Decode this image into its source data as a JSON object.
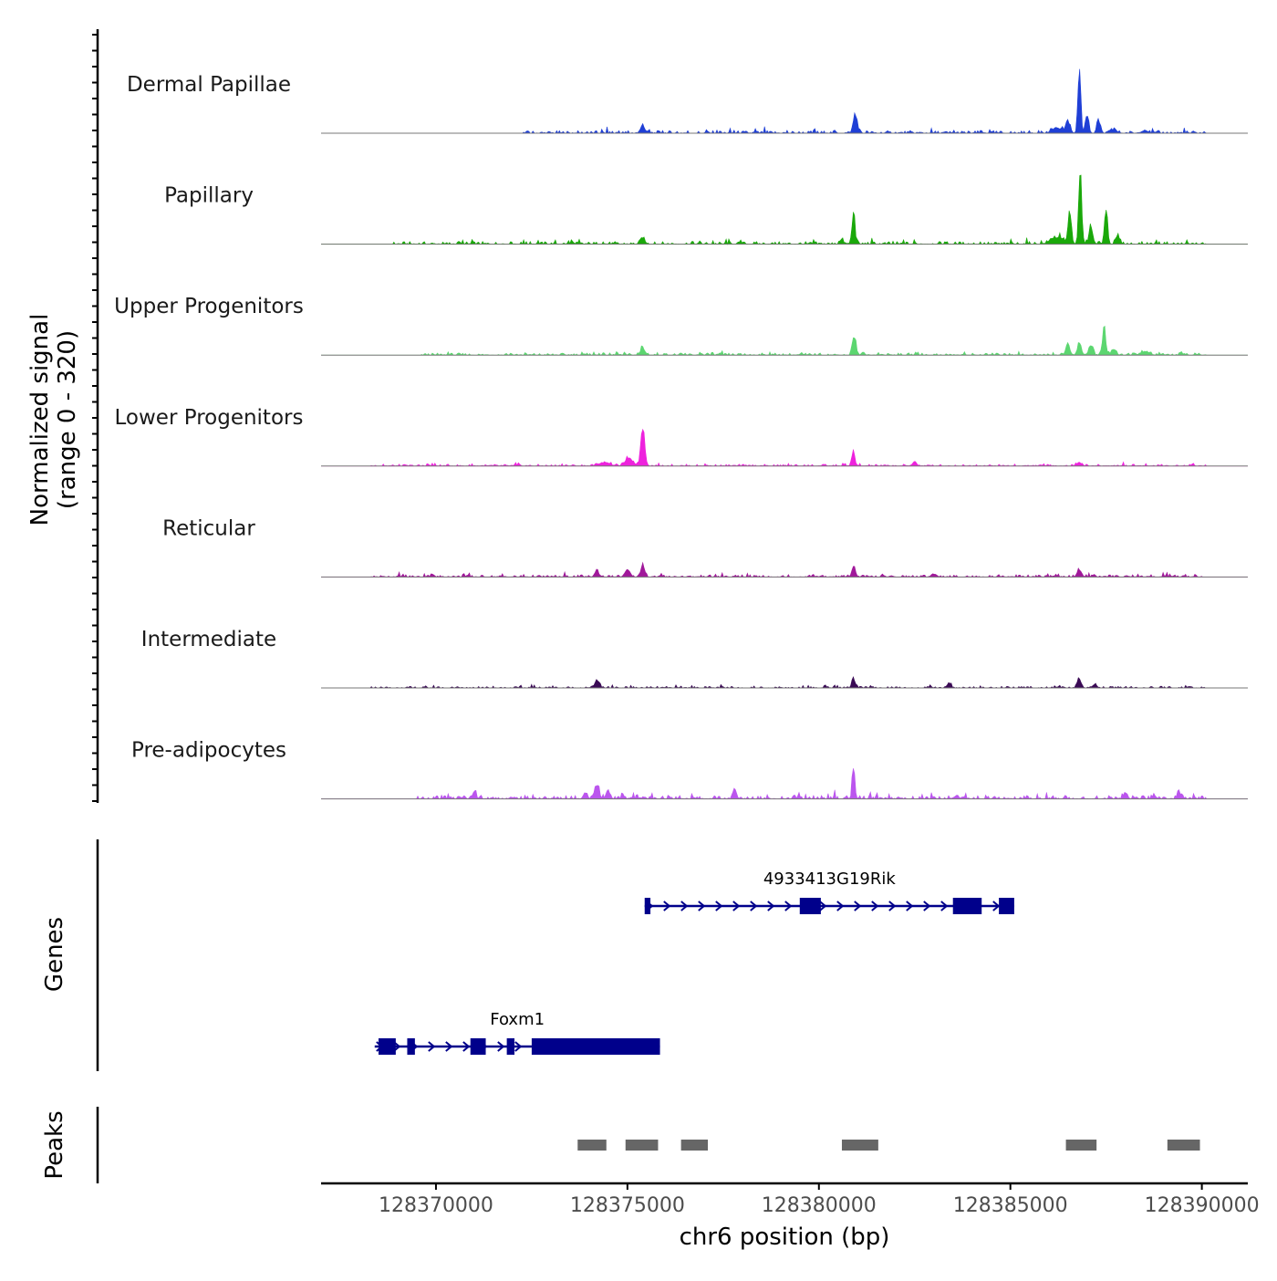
{
  "chart_data": {
    "type": "area",
    "chromosome": "chr6",
    "xlabel": "chr6 position (bp)",
    "xlim": [
      128367000,
      128391200
    ],
    "x_ticks": [
      128370000,
      128375000,
      128380000,
      128385000,
      128390000
    ],
    "x_tick_labels": [
      "128370000",
      "128375000",
      "128380000",
      "128385000",
      "128390000"
    ],
    "coverage_ylabel_line1": "Normalized signal",
    "coverage_ylabel_line2": "(range 0 - 320)",
    "ylim": [
      0,
      320
    ],
    "tracks": [
      {
        "name": "Dermal Papillae",
        "color": "#1f3fd6",
        "region": [
          128372200,
          128390100
        ],
        "peaks": [
          [
            128375400,
            35,
            70
          ],
          [
            128380950,
            83,
            70
          ],
          [
            128386200,
            22,
            150
          ],
          [
            128386500,
            55,
            80
          ],
          [
            128386800,
            300,
            50
          ],
          [
            128387000,
            80,
            60
          ],
          [
            128387300,
            55,
            60
          ],
          [
            128387700,
            15,
            100
          ],
          [
            128388500,
            12,
            100
          ]
        ],
        "noise": 10
      },
      {
        "name": "Papillary",
        "color": "#1aa80a",
        "region": [
          128368900,
          128390100
        ],
        "peaks": [
          [
            128375400,
            28,
            70
          ],
          [
            128380900,
            130,
            55
          ],
          [
            128380600,
            18,
            60
          ],
          [
            128386550,
            135,
            60
          ],
          [
            128386820,
            340,
            50
          ],
          [
            128387100,
            85,
            60
          ],
          [
            128387500,
            150,
            55
          ],
          [
            128387800,
            35,
            70
          ],
          [
            128386200,
            30,
            200
          ]
        ],
        "noise": 10
      },
      {
        "name": "Upper Progenitors",
        "color": "#5cd670",
        "region": [
          128369600,
          128390100
        ],
        "peaks": [
          [
            128375400,
            33,
            70
          ],
          [
            128380920,
            75,
            60
          ],
          [
            128386500,
            45,
            70
          ],
          [
            128386800,
            50,
            70
          ],
          [
            128387100,
            45,
            70
          ],
          [
            128387450,
            120,
            55
          ],
          [
            128387700,
            25,
            80
          ],
          [
            128388500,
            12,
            150
          ]
        ],
        "noise": 8
      },
      {
        "name": "Lower Progenitors",
        "color": "#ee22dd",
        "region": [
          128368300,
          128390100
        ],
        "peaks": [
          [
            128375400,
            165,
            70
          ],
          [
            128375050,
            30,
            150
          ],
          [
            128374400,
            15,
            200
          ],
          [
            128380900,
            58,
            50
          ],
          [
            128382500,
            18,
            70
          ],
          [
            128386800,
            15,
            100
          ]
        ],
        "noise": 7
      },
      {
        "name": "Reticular",
        "color": "#a0189a",
        "region": [
          128368300,
          128390100
        ],
        "peaks": [
          [
            128375400,
            48,
            70
          ],
          [
            128375000,
            28,
            80
          ],
          [
            128374200,
            28,
            70
          ],
          [
            128380900,
            48,
            60
          ],
          [
            128386800,
            28,
            80
          ],
          [
            128383000,
            12,
            100
          ]
        ],
        "noise": 8
      },
      {
        "name": "Intermediate",
        "color": "#3a0a55",
        "region": [
          128368300,
          128390100
        ],
        "peaks": [
          [
            128374200,
            35,
            70
          ],
          [
            128380900,
            48,
            50
          ],
          [
            128383400,
            20,
            70
          ],
          [
            128386800,
            40,
            70
          ],
          [
            128387200,
            15,
            70
          ]
        ],
        "noise": 6
      },
      {
        "name": "Pre-adipocytes",
        "color": "#bb55ee",
        "region": [
          128369500,
          128390100
        ],
        "peaks": [
          [
            128374200,
            60,
            80
          ],
          [
            128374500,
            35,
            70
          ],
          [
            128373900,
            25,
            70
          ],
          [
            128371000,
            35,
            60
          ],
          [
            128380900,
            140,
            45
          ],
          [
            128377800,
            35,
            60
          ],
          [
            128388000,
            28,
            70
          ],
          [
            128389400,
            28,
            60
          ],
          [
            128383600,
            18,
            60
          ]
        ],
        "noise": 14
      }
    ],
    "genes_ylabel": "Genes",
    "genes": [
      {
        "name": "4933413G19Rik",
        "start": 128375450,
        "end": 128385100,
        "strand": "+",
        "exons": [
          [
            128375450,
            128375600
          ],
          [
            128379500,
            128380050
          ],
          [
            128383500,
            128384250
          ],
          [
            128384700,
            128385100
          ]
        ]
      },
      {
        "name": "Foxm1",
        "start": 128368400,
        "end": 128375850,
        "strand": "+",
        "exons": [
          [
            128368500,
            128368950
          ],
          [
            128369250,
            128369450
          ],
          [
            128370900,
            128371300
          ],
          [
            128371850,
            128372050
          ],
          [
            128372500,
            128375850
          ]
        ]
      }
    ],
    "peaks_ylabel": "Peaks",
    "peak_regions": [
      [
        128373700,
        128374450
      ],
      [
        128374950,
        128375800
      ],
      [
        128376400,
        128377100
      ],
      [
        128380600,
        128381550
      ],
      [
        128386450,
        128387250
      ],
      [
        128389100,
        128389950
      ]
    ]
  }
}
